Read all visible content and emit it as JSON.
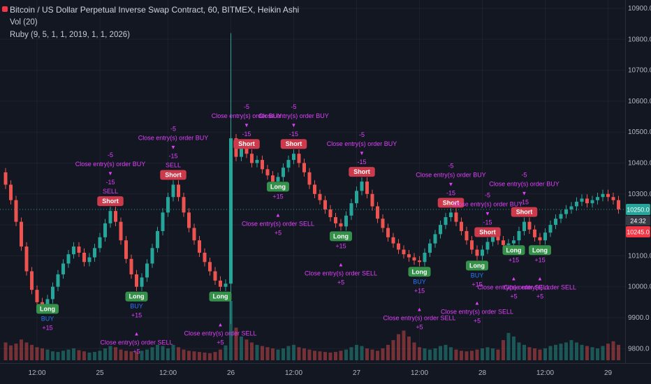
{
  "header": {
    "title": "Bitcoin / US Dollar Perpetual Inverse Swap Contract, 60, BITMEX, Heikin Ashi",
    "vol_label": "Vol (20)",
    "strategy_label": "Ruby (9, 5, 1, 1, 2019, 1, 1, 2026)"
  },
  "colors": {
    "bg": "#131722",
    "up": "#26a69a",
    "down": "#ef5350",
    "vol_up": "rgba(38,166,154,0.45)",
    "vol_down": "rgba(239,83,80,0.45)",
    "grid": "rgba(120,130,150,0.10)",
    "axis_text": "#b2b5be",
    "axis_border": "#2a2e39",
    "magenta": "#e040fb",
    "blue": "#2979ff",
    "short_badge": "#cc3a4b",
    "long_badge": "#35904a",
    "last_badge": "#26a69a",
    "alt_badge": "#f23645",
    "countdown_badge": "#363a45"
  },
  "price_axis": {
    "labels": [
      10900,
      10800,
      10700,
      10600,
      10500,
      10400,
      10300,
      10200,
      10100,
      10000,
      9900,
      9800
    ],
    "hidden_label": 10200,
    "last_price": "10250.0",
    "last_price_value": 10250,
    "countdown": "24:32",
    "alt_price": "10245.0"
  },
  "time_axis": {
    "ticks": [
      {
        "label": "12:00",
        "i": 6
      },
      {
        "label": "25",
        "i": 18
      },
      {
        "label": "12:00",
        "i": 31
      },
      {
        "label": "26",
        "i": 43
      },
      {
        "label": "12:00",
        "i": 55
      },
      {
        "label": "27",
        "i": 67
      },
      {
        "label": "12:00",
        "i": 79
      },
      {
        "label": "28",
        "i": 91
      },
      {
        "label": "12:00",
        "i": 103
      },
      {
        "label": "29",
        "i": 115
      }
    ]
  },
  "chart_data": {
    "type": "candlestick",
    "title": "Bitcoin / US Dollar Perpetual Inverse Swap Contract, 60, BITMEX, Heikin Ashi",
    "interval": "60",
    "ylim": [
      9750,
      10925
    ],
    "first_open": 10370,
    "wick": 14,
    "closes": [
      10330,
      10280,
      10210,
      10130,
      10050,
      9990,
      9950,
      9935,
      9960,
      10000,
      10040,
      10075,
      10105,
      10130,
      10110,
      10080,
      10095,
      10125,
      10160,
      10205,
      10245,
      10210,
      10150,
      10090,
      10040,
      10000,
      10030,
      10075,
      10125,
      10180,
      10240,
      10290,
      10330,
      10290,
      10240,
      10190,
      10150,
      10110,
      10080,
      10050,
      10020,
      10000,
      10010,
      10480,
      10420,
      10450,
      10430,
      10400,
      10410,
      10380,
      10360,
      10340,
      10355,
      10385,
      10410,
      10430,
      10400,
      10370,
      10330,
      10300,
      10280,
      10250,
      10225,
      10205,
      10195,
      10230,
      10270,
      10310,
      10340,
      10300,
      10260,
      10220,
      10190,
      10160,
      10140,
      10120,
      10105,
      10095,
      10085,
      10080,
      10110,
      10140,
      10170,
      10200,
      10225,
      10240,
      10210,
      10180,
      10150,
      10120,
      10100,
      10120,
      10145,
      10165,
      10150,
      10135,
      10140,
      10150,
      10180,
      10210,
      10185,
      10160,
      10150,
      10175,
      10200,
      10220,
      10235,
      10250,
      10260,
      10275,
      10285,
      10270,
      10280,
      10290,
      10300,
      10290,
      10280,
      10250
    ],
    "volumes": [
      30,
      25,
      28,
      35,
      30,
      26,
      22,
      20,
      18,
      15,
      14,
      16,
      18,
      20,
      17,
      15,
      13,
      14,
      16,
      20,
      24,
      22,
      18,
      16,
      15,
      14,
      16,
      18,
      22,
      26,
      24,
      20,
      26,
      22,
      18,
      16,
      15,
      14,
      13,
      12,
      14,
      18,
      25,
      100,
      55,
      40,
      35,
      30,
      26,
      24,
      22,
      20,
      18,
      20,
      24,
      26,
      22,
      20,
      18,
      16,
      15,
      14,
      13,
      14,
      16,
      18,
      22,
      26,
      24,
      20,
      18,
      16,
      20,
      26,
      34,
      44,
      50,
      40,
      30,
      22,
      20,
      18,
      20,
      24,
      26,
      22,
      18,
      16,
      15,
      16,
      18,
      20,
      22,
      20,
      18,
      34,
      46,
      40,
      30,
      26,
      22,
      20,
      18,
      20,
      24,
      26,
      28,
      30,
      34,
      30,
      26,
      24,
      22,
      20,
      24,
      28,
      32,
      26
    ],
    "spike": {
      "index": 43,
      "open": 10010,
      "high": 10820,
      "low": 9880,
      "close": 10480
    },
    "signals": [
      {
        "i": 8,
        "side": "long",
        "label": "Long",
        "above": [],
        "below": [
          "BUY",
          "+15"
        ]
      },
      {
        "i": 20,
        "side": "short",
        "label": "Short",
        "above": [
          "-5",
          "Close entry(s) order BUY",
          "▼",
          "-15",
          "SELL"
        ],
        "below": []
      },
      {
        "i": 25,
        "side": "long",
        "label": "Long",
        "above": [],
        "below": [
          "BUY",
          "+15",
          "",
          "▲",
          "Close entry(s) order SELL",
          "+5"
        ]
      },
      {
        "i": 32,
        "side": "short",
        "label": "Short",
        "above": [
          "-5",
          "Close entry(s) order BUY",
          "▼",
          "-15",
          "SELL"
        ],
        "below": []
      },
      {
        "i": 41,
        "side": "long",
        "label": "Long",
        "above": [],
        "below": [
          "",
          "",
          "▲",
          "Close entry(s) order SELL",
          "+5"
        ]
      },
      {
        "i": 46,
        "side": "short",
        "label": "Short",
        "above": [
          "-5",
          "Close entry(s) order BUY",
          "▼",
          "-15"
        ],
        "below": []
      },
      {
        "i": 52,
        "side": "long",
        "label": "Long",
        "above": [],
        "below": [
          "+15",
          "",
          "▲",
          "Close entry(s) order SELL",
          "+5"
        ]
      },
      {
        "i": 55,
        "side": "short",
        "label": "Short",
        "above": [
          "-5",
          "Close entry(s) order BUY",
          "▼",
          "-15"
        ],
        "below": []
      },
      {
        "i": 64,
        "side": "long",
        "label": "Long",
        "above": [],
        "below": [
          "+15",
          "",
          "▲",
          "Close entry(s) order SELL",
          "+5"
        ]
      },
      {
        "i": 68,
        "side": "short",
        "label": "Short",
        "above": [
          "-5",
          "Close entry(s) order BUY",
          "▼",
          "-15"
        ],
        "below": []
      },
      {
        "i": 79,
        "side": "long",
        "label": "Long",
        "above": [],
        "below": [
          "BUY",
          "+15",
          "",
          "▲",
          "Close entry(s) order SELL",
          "+5"
        ]
      },
      {
        "i": 85,
        "side": "short",
        "label": "Short",
        "above": [
          "-5",
          "Close entry(s) order BUY",
          "▼",
          "-15"
        ],
        "below": []
      },
      {
        "i": 90,
        "side": "long",
        "label": "Long",
        "above": [],
        "below": [
          "BUY",
          "+15",
          "",
          "▲",
          "Close entry(s) order SELL",
          "+5"
        ]
      },
      {
        "i": 92,
        "side": "short",
        "label": "Short",
        "above": [
          "-5",
          "Close entry(s) order BUY",
          "▼",
          "-15"
        ],
        "below": []
      },
      {
        "i": 97,
        "side": "long",
        "label": "Long",
        "above": [],
        "below": [
          "+15",
          "",
          "▲",
          "Close entry(s) order SELL",
          "+5"
        ]
      },
      {
        "i": 99,
        "side": "short",
        "label": "Short",
        "above": [
          "-5",
          "Close entry(s) order BUY",
          "▼",
          "-15"
        ],
        "below": []
      },
      {
        "i": 102,
        "side": "long",
        "label": "Long",
        "above": [],
        "below": [
          "+15",
          "",
          "▲",
          "Close entry(s) order SELL",
          "+5"
        ]
      }
    ]
  }
}
